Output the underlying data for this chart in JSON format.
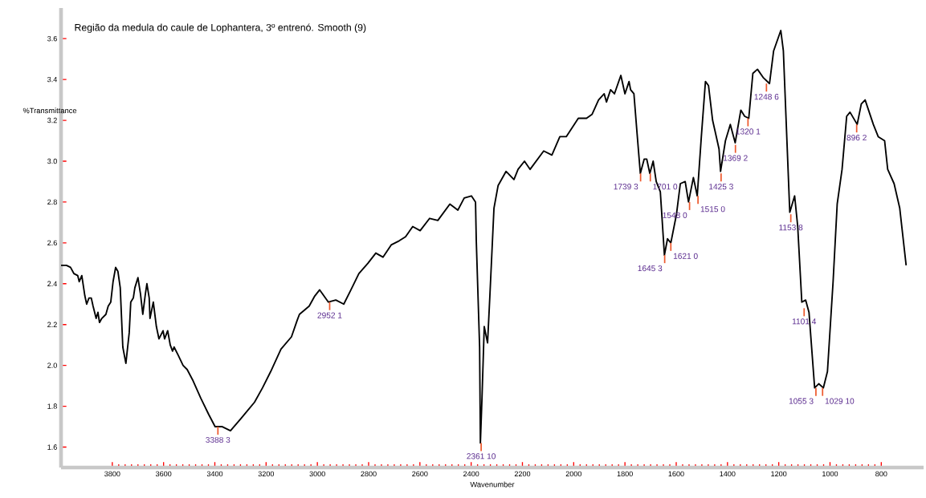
{
  "chart_data": {
    "type": "line",
    "title": "Região da medula do caule de Lophantera, 3º entrenó. Smooth (9)",
    "xlabel": "Wavenumber",
    "ylabel": "%Transmittance",
    "xlim": [
      4000,
      635
    ],
    "ylim": [
      1.5,
      3.75
    ],
    "xticks": [
      3800,
      3600,
      3400,
      3200,
      3000,
      2800,
      2600,
      2400,
      2200,
      2000,
      1800,
      1600,
      1400,
      1200,
      1000,
      800
    ],
    "yticks": [
      1.6,
      1.8,
      {
        "value": 2,
        "label": "2.0"
      },
      2.2,
      2.4,
      2.6,
      2.8,
      {
        "value": 3,
        "label": "3.0"
      },
      3.2,
      3.4,
      3.6
    ],
    "grid": false,
    "marker": "none",
    "line_style": "solid",
    "series": [
      {
        "color": "#000000",
        "x": [
          4000,
          3979,
          3963,
          3950,
          3935,
          3929,
          3919,
          3907,
          3900,
          3891,
          3882,
          3875,
          3863,
          3856,
          3850,
          3841,
          3825,
          3816,
          3806,
          3797,
          3787,
          3778,
          3769,
          3759,
          3747,
          3734,
          3728,
          3718,
          3712,
          3700,
          3690,
          3681,
          3671,
          3665,
          3656,
          3653,
          3640,
          3628,
          3618,
          3602,
          3596,
          3584,
          3574,
          3565,
          3559,
          3543,
          3524,
          3508,
          3487,
          3455,
          3424,
          3399,
          3371,
          3339,
          3298,
          3245,
          3214,
          3182,
          3142,
          3101,
          3079,
          3070,
          3032,
          3010,
          2991,
          2957,
          2928,
          2897,
          2869,
          2838,
          2803,
          2772,
          2744,
          2712,
          2681,
          2656,
          2628,
          2599,
          2562,
          2530,
          2483,
          2452,
          2427,
          2399,
          2383,
          2380,
          2367,
          2364,
          2358,
          2349,
          2336,
          2327,
          2311,
          2295,
          2264,
          2233,
          2217,
          2192,
          2170,
          2117,
          2085,
          2054,
          2029,
          1982,
          1950,
          1928,
          1903,
          1881,
          1872,
          1856,
          1841,
          1816,
          1800,
          1784,
          1778,
          1765,
          1753,
          1740,
          1725,
          1715,
          1703,
          1690,
          1678,
          1662,
          1646,
          1634,
          1621,
          1599,
          1584,
          1565,
          1552,
          1533,
          1518,
          1502,
          1486,
          1474,
          1458,
          1449,
          1433,
          1427,
          1408,
          1389,
          1370,
          1348,
          1333,
          1317,
          1301,
          1283,
          1261,
          1236,
          1220,
          1192,
          1182,
          1157,
          1138,
          1126,
          1110,
          1095,
          1082,
          1060,
          1044,
          1026,
          1010,
          988,
          972,
          953,
          935,
          922,
          894,
          878,
          863,
          831,
          812,
          787,
          775,
          750,
          728,
          712,
          703
        ],
        "values": [
          2.49,
          2.49,
          2.48,
          2.45,
          2.44,
          2.41,
          2.44,
          2.34,
          2.3,
          2.33,
          2.33,
          2.29,
          2.23,
          2.26,
          2.21,
          2.23,
          2.25,
          2.29,
          2.31,
          2.41,
          2.48,
          2.46,
          2.38,
          2.09,
          2.01,
          2.16,
          2.31,
          2.33,
          2.38,
          2.43,
          2.35,
          2.25,
          2.35,
          2.4,
          2.33,
          2.23,
          2.31,
          2.19,
          2.13,
          2.17,
          2.13,
          2.17,
          2.1,
          2.07,
          2.09,
          2.05,
          2.0,
          1.98,
          1.93,
          1.84,
          1.76,
          1.7,
          1.7,
          1.68,
          1.74,
          1.82,
          1.89,
          1.97,
          2.08,
          2.14,
          2.22,
          2.25,
          2.29,
          2.34,
          2.37,
          2.31,
          2.32,
          2.3,
          2.37,
          2.45,
          2.5,
          2.55,
          2.53,
          2.59,
          2.61,
          2.63,
          2.68,
          2.66,
          2.72,
          2.71,
          2.79,
          2.76,
          2.82,
          2.83,
          2.8,
          2.61,
          2.09,
          1.62,
          1.83,
          2.19,
          2.11,
          2.34,
          2.77,
          2.88,
          2.95,
          2.91,
          2.96,
          3.0,
          2.96,
          3.05,
          3.03,
          3.12,
          3.12,
          3.21,
          3.21,
          3.23,
          3.3,
          3.33,
          3.29,
          3.35,
          3.33,
          3.42,
          3.33,
          3.39,
          3.35,
          3.33,
          3.14,
          2.94,
          3.01,
          3.01,
          2.94,
          3.0,
          2.9,
          2.85,
          2.54,
          2.62,
          2.6,
          2.74,
          2.89,
          2.9,
          2.8,
          2.92,
          2.83,
          3.12,
          3.39,
          3.37,
          3.2,
          3.15,
          3.06,
          2.95,
          3.1,
          3.18,
          3.09,
          3.25,
          3.22,
          3.21,
          3.43,
          3.45,
          3.41,
          3.38,
          3.54,
          3.64,
          3.54,
          2.75,
          2.83,
          2.68,
          2.31,
          2.32,
          2.26,
          1.89,
          1.91,
          1.89,
          1.97,
          2.41,
          2.79,
          2.96,
          3.22,
          3.24,
          3.18,
          3.28,
          3.3,
          3.18,
          3.12,
          3.1,
          2.96,
          2.89,
          2.77,
          2.59,
          2.49
        ]
      }
    ],
    "annotations": [
      {
        "text": "3388  3",
        "x": 3388,
        "y": 1.7
      },
      {
        "text": "2952  1",
        "x": 2952,
        "y": 2.31
      },
      {
        "text": "2361  10",
        "x": 2361,
        "y": 1.62
      },
      {
        "text": "1739  3",
        "x": 1739,
        "y": 2.94
      },
      {
        "text": "1701  0",
        "x": 1701,
        "y": 2.94
      },
      {
        "text": "1645  3",
        "x": 1645,
        "y": 2.54
      },
      {
        "text": "1621  0",
        "x": 1621,
        "y": 2.6
      },
      {
        "text": "1548  0",
        "x": 1548,
        "y": 2.8
      },
      {
        "text": "1515  0",
        "x": 1515,
        "y": 2.83
      },
      {
        "text": "1425  3",
        "x": 1425,
        "y": 2.94
      },
      {
        "text": "1369  2",
        "x": 1369,
        "y": 3.08
      },
      {
        "text": "1320  1",
        "x": 1320,
        "y": 3.21
      },
      {
        "text": "1248  6",
        "x": 1248,
        "y": 3.38
      },
      {
        "text": "1153  8",
        "x": 1153,
        "y": 2.74
      },
      {
        "text": "1101  4",
        "x": 1101,
        "y": 2.28
      },
      {
        "text": "1055  3",
        "x": 1055,
        "y": 1.89
      },
      {
        "text": "1029  10",
        "x": 1029,
        "y": 1.89
      },
      {
        "text": "896  2",
        "x": 896,
        "y": 3.18
      }
    ]
  }
}
